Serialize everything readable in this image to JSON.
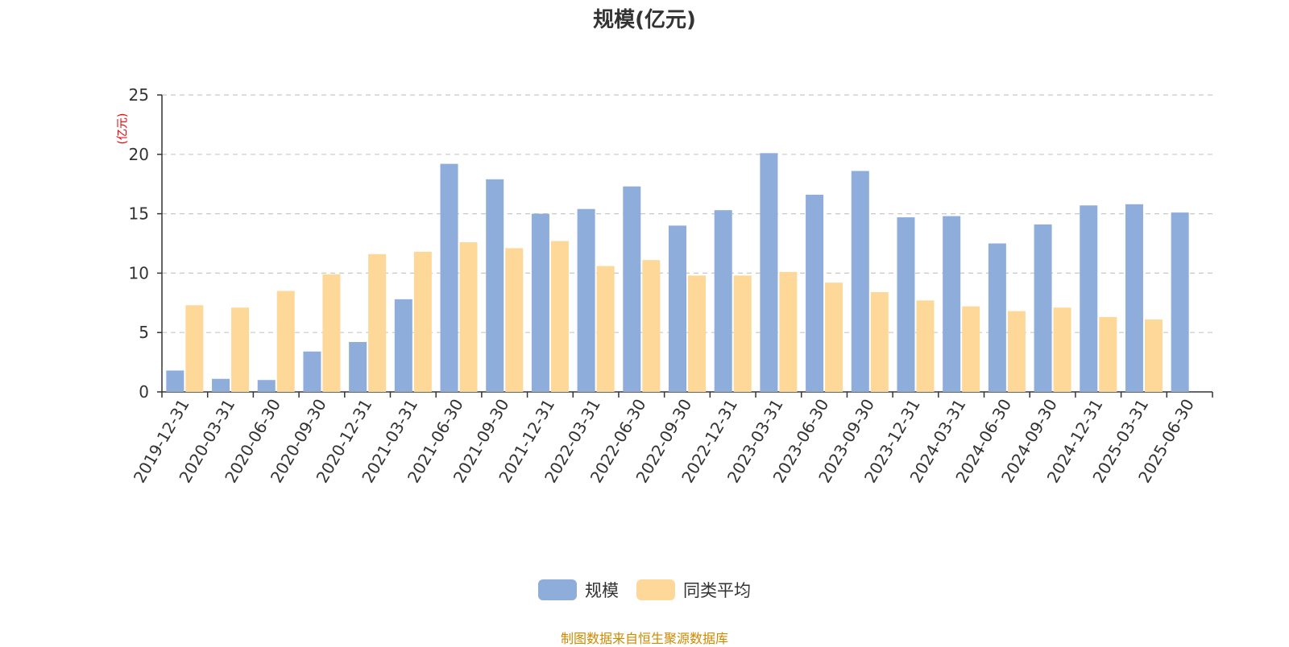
{
  "colors": {
    "series1": "#8eaddb",
    "series2": "#fed898",
    "unit": "#e60000",
    "source": "#cc8a00"
  },
  "chart_data": {
    "type": "bar",
    "title": "规模(亿元)",
    "ylabel": "(亿元)",
    "ylim": [
      0,
      25
    ],
    "yticks": [
      0,
      5,
      10,
      15,
      20,
      25
    ],
    "grid": true,
    "legend_position": "bottom",
    "categories": [
      "2019-12-31",
      "2020-03-31",
      "2020-06-30",
      "2020-09-30",
      "2020-12-31",
      "2021-03-31",
      "2021-06-30",
      "2021-09-30",
      "2021-12-31",
      "2022-03-31",
      "2022-06-30",
      "2022-09-30",
      "2022-12-31",
      "2023-03-31",
      "2023-06-30",
      "2023-09-30",
      "2023-12-31",
      "2024-03-31",
      "2024-06-30",
      "2024-09-30",
      "2024-12-31",
      "2025-03-31",
      "2025-06-30"
    ],
    "series": [
      {
        "name": "规模",
        "values": [
          1.8,
          1.1,
          1.0,
          3.4,
          4.2,
          7.8,
          19.2,
          17.9,
          15.0,
          15.4,
          17.3,
          14.0,
          15.3,
          20.1,
          16.6,
          18.6,
          14.7,
          14.8,
          12.5,
          14.1,
          15.7,
          15.8,
          15.1
        ]
      },
      {
        "name": "同类平均",
        "values": [
          7.3,
          7.1,
          8.5,
          9.9,
          11.6,
          11.8,
          12.6,
          12.1,
          12.7,
          10.6,
          11.1,
          9.8,
          9.8,
          10.1,
          9.2,
          8.4,
          7.7,
          7.2,
          6.8,
          7.1,
          6.3,
          6.1,
          null
        ]
      }
    ]
  },
  "source_text": "制图数据来自恒生聚源数据库"
}
